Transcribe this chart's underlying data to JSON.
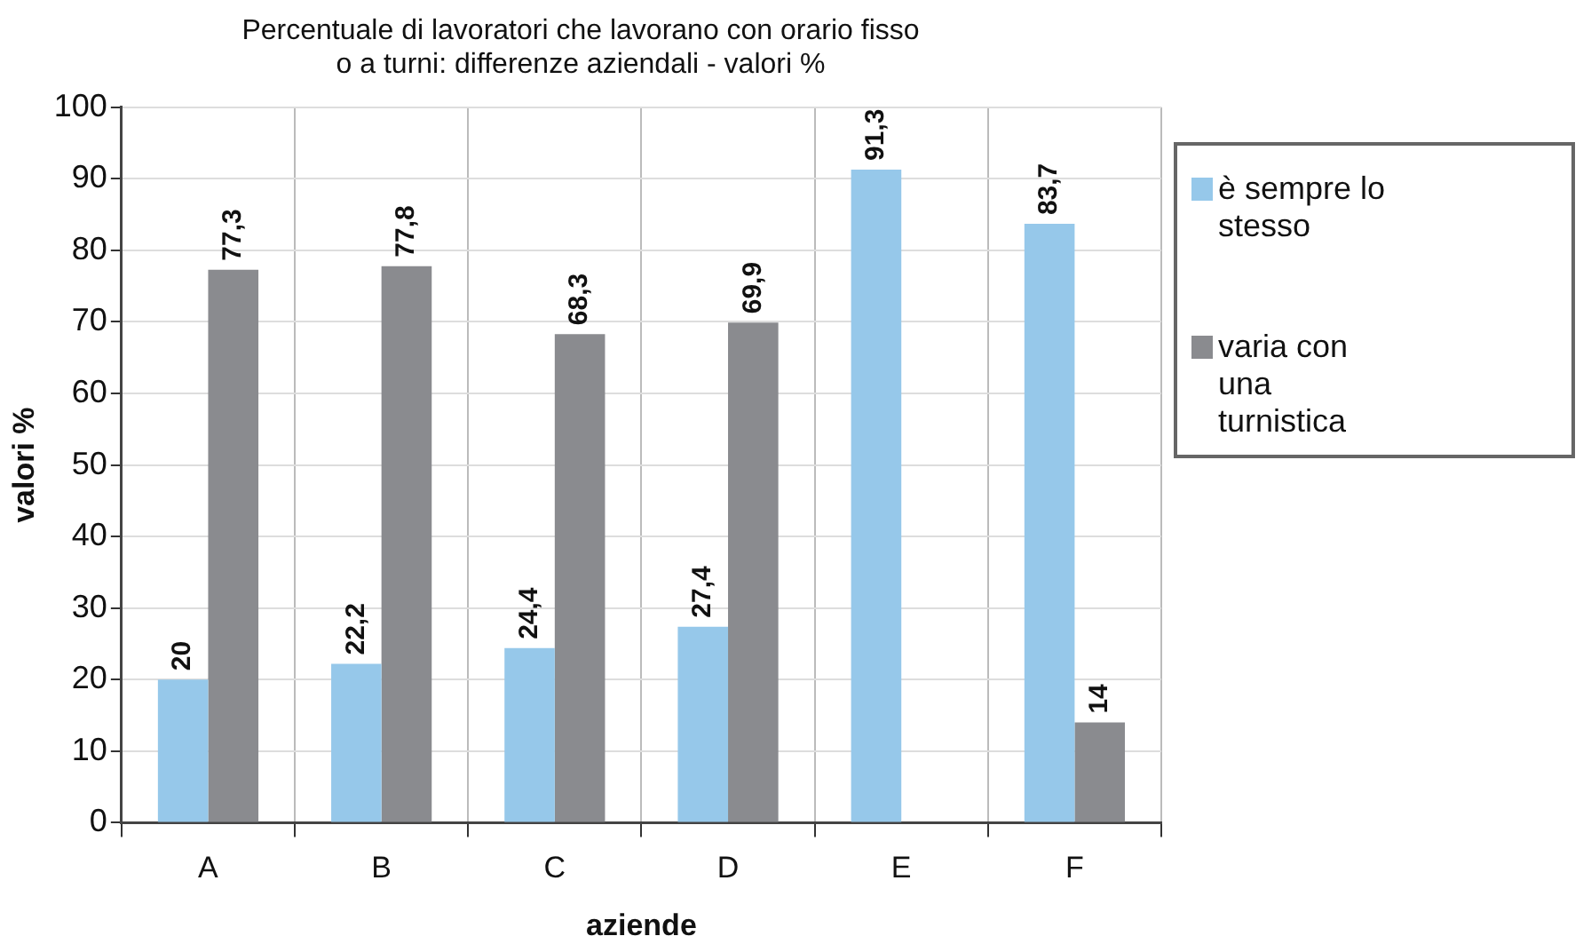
{
  "chart_data": {
    "type": "bar",
    "title": "Percentuale di lavoratori che lavorano con orario fisso\no a turni: differenze aziendali - valori %",
    "xlabel": "aziende",
    "ylabel": "valori %",
    "categories": [
      "A",
      "B",
      "C",
      "D",
      "E",
      "F"
    ],
    "series": [
      {
        "name": "è sempre lo stesso",
        "color": "#96c8ea",
        "values": [
          20,
          22.2,
          24.4,
          27.4,
          91.3,
          83.7
        ],
        "value_labels": [
          "20",
          "22,2",
          "24,4",
          "27,4",
          "91,3",
          "83,7"
        ]
      },
      {
        "name": "varia con una turnistica",
        "color": "#8a8b8f",
        "values": [
          77.3,
          77.8,
          68.3,
          69.9,
          null,
          14
        ],
        "value_labels": [
          "77,3",
          "77,8",
          "68,3",
          "69,9",
          null,
          "14"
        ]
      }
    ],
    "ylim": [
      0,
      100
    ],
    "yticks": [
      0,
      10,
      20,
      30,
      40,
      50,
      60,
      70,
      80,
      90,
      100
    ],
    "grid": true,
    "legend": "right"
  }
}
